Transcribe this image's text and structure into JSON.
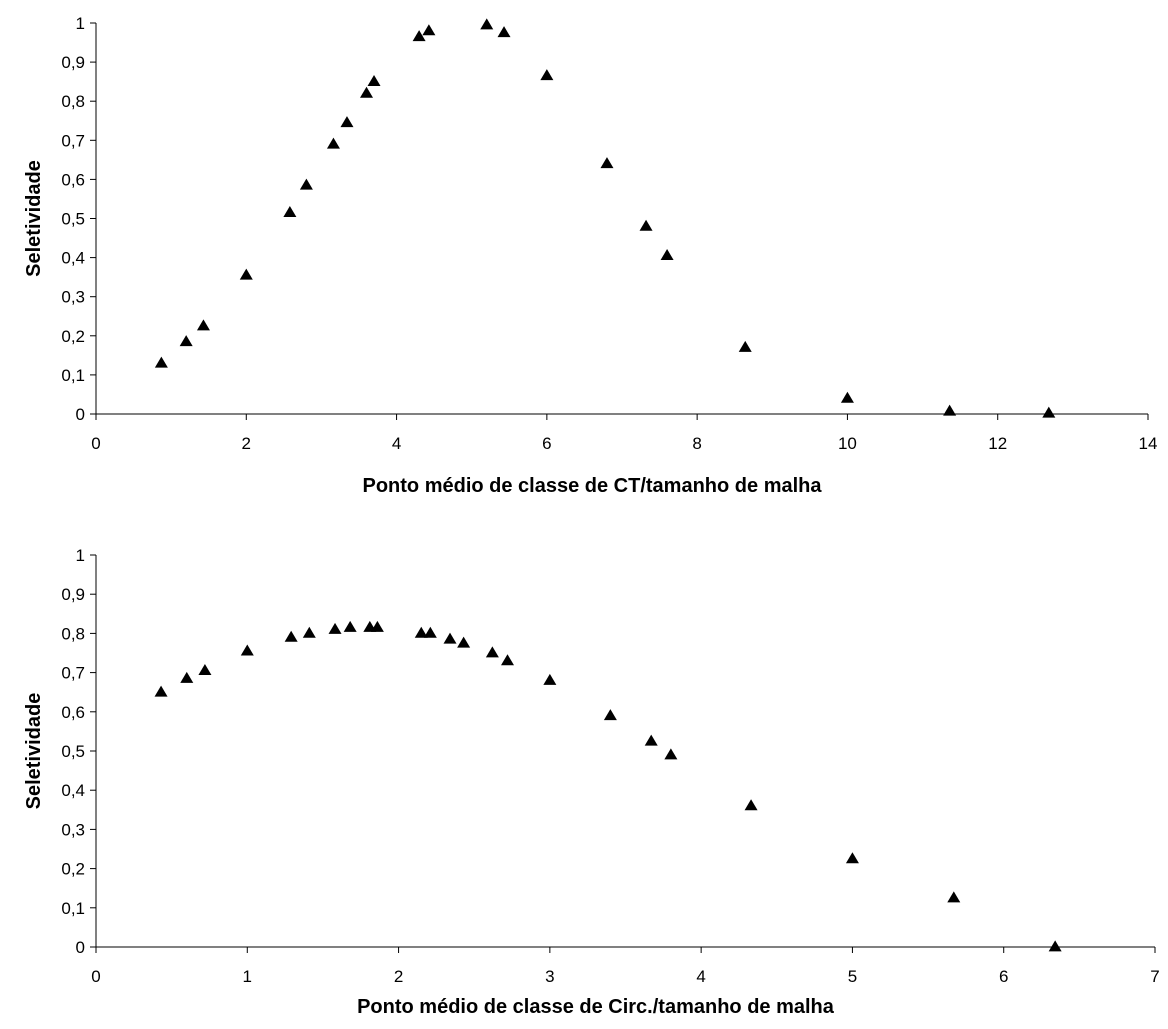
{
  "chart_data": [
    {
      "type": "scatter",
      "title": "",
      "xlabel": "Ponto médio de classe de CT/tamanho de malha",
      "ylabel": "Seletividade",
      "xlim": [
        0,
        14
      ],
      "ylim": [
        0,
        1
      ],
      "x_ticks": [
        "0",
        "2",
        "4",
        "6",
        "8",
        "10",
        "12",
        "14"
      ],
      "y_ticks": [
        "0",
        "0,1",
        "0,2",
        "0,3",
        "0,4",
        "0,5",
        "0,6",
        "0,7",
        "0,8",
        "0,9",
        "1"
      ],
      "grid": false,
      "legend": "none",
      "marker": "triangle",
      "marker_color": "#000000",
      "series": [
        {
          "points": [
            [
              0.87,
              0.13
            ],
            [
              1.2,
              0.185
            ],
            [
              1.43,
              0.225
            ],
            [
              2.0,
              0.355
            ],
            [
              2.58,
              0.515
            ],
            [
              2.8,
              0.585
            ],
            [
              3.16,
              0.69
            ],
            [
              3.34,
              0.745
            ],
            [
              3.6,
              0.82
            ],
            [
              3.7,
              0.85
            ],
            [
              4.3,
              0.965
            ],
            [
              4.43,
              0.98
            ],
            [
              5.2,
              0.995
            ],
            [
              5.43,
              0.975
            ],
            [
              6.0,
              0.865
            ],
            [
              6.8,
              0.64
            ],
            [
              7.32,
              0.48
            ],
            [
              7.6,
              0.405
            ],
            [
              8.64,
              0.17
            ],
            [
              10.0,
              0.04
            ],
            [
              11.36,
              0.007
            ],
            [
              12.68,
              0.002
            ]
          ]
        }
      ]
    },
    {
      "type": "scatter",
      "title": "",
      "xlabel": "Ponto médio de classe de Circ./tamanho de malha",
      "ylabel": "Seletividade",
      "xlim": [
        0,
        7
      ],
      "ylim": [
        0,
        1
      ],
      "x_ticks": [
        "0",
        "1",
        "2",
        "3",
        "4",
        "5",
        "6",
        "7"
      ],
      "y_ticks": [
        "0",
        "0,1",
        "0,2",
        "0,3",
        "0,4",
        "0,5",
        "0,6",
        "0,7",
        "0,8",
        "0,9",
        "1"
      ],
      "grid": false,
      "legend": "none",
      "marker": "triangle",
      "marker_color": "#000000",
      "series": [
        {
          "points": [
            [
              0.43,
              0.65
            ],
            [
              0.6,
              0.685
            ],
            [
              0.72,
              0.705
            ],
            [
              1.0,
              0.755
            ],
            [
              1.29,
              0.79
            ],
            [
              1.41,
              0.8
            ],
            [
              1.58,
              0.81
            ],
            [
              1.68,
              0.815
            ],
            [
              1.81,
              0.815
            ],
            [
              1.86,
              0.815
            ],
            [
              2.15,
              0.8
            ],
            [
              2.21,
              0.8
            ],
            [
              2.34,
              0.785
            ],
            [
              2.43,
              0.775
            ],
            [
              2.62,
              0.75
            ],
            [
              2.72,
              0.73
            ],
            [
              3.0,
              0.68
            ],
            [
              3.4,
              0.59
            ],
            [
              3.67,
              0.525
            ],
            [
              3.8,
              0.49
            ],
            [
              4.33,
              0.36
            ],
            [
              5.0,
              0.225
            ],
            [
              5.67,
              0.125
            ],
            [
              6.34,
              0.0
            ]
          ]
        }
      ]
    }
  ]
}
